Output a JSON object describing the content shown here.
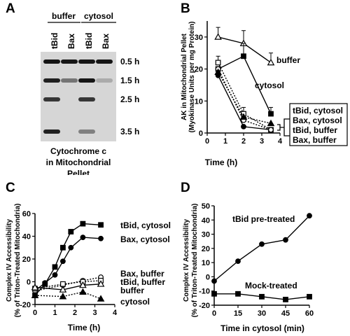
{
  "panels": {
    "a": {
      "letter": "A",
      "group_labels": [
        "buffer",
        "cytosol"
      ],
      "lane_labels": [
        "tBid",
        "Bax",
        "tBid",
        "Bax"
      ],
      "row_labels": [
        "0.5 h",
        "1.5 h",
        "2.5 h",
        "3.5 h"
      ],
      "caption": [
        "Cytochrome c",
        "in Mitochondrial",
        "Pellet"
      ],
      "band_intensity": [
        [
          0.9,
          0.9,
          0.9,
          0.9
        ],
        [
          0.85,
          0.45,
          0.9,
          0.2
        ],
        [
          0.75,
          0.0,
          0.75,
          0.0
        ],
        [
          0.85,
          0.0,
          0.4,
          0.0
        ]
      ]
    },
    "b": {
      "letter": "B"
    },
    "c": {
      "letter": "C"
    },
    "d": {
      "letter": "D"
    }
  },
  "chart_data": [
    {
      "id": "B",
      "type": "line",
      "xlabel": "Time (h)",
      "ylabel": "AK in Mitochondrial Pellet",
      "ylabel2": "(Myokinase Units per mg Protein)",
      "xlim": [
        0,
        4
      ],
      "ylim": [
        0,
        35
      ],
      "xticks": [
        0,
        1,
        2,
        3,
        4
      ],
      "yticks": [
        0,
        10,
        20,
        30
      ],
      "series": [
        {
          "name": "buffer",
          "marker": "open-triangle",
          "dash": false,
          "x": [
            0.6,
            2.0,
            3.5
          ],
          "y": [
            30,
            28,
            22
          ],
          "err": [
            3,
            4,
            3
          ]
        },
        {
          "name": "cytosol",
          "marker": "filled-square",
          "dash": false,
          "x": [
            0.6,
            2.0,
            3.5
          ],
          "y": [
            20,
            24,
            6
          ],
          "err": [
            0,
            4,
            2
          ]
        },
        {
          "name": "tBid, cytosol",
          "marker": "filled-circle",
          "dash": false,
          "x": [
            0.6,
            2.0,
            3.5
          ],
          "y": [
            18,
            2,
            1
          ],
          "err": [
            0,
            0,
            0
          ]
        },
        {
          "name": "Bax, cytosol",
          "marker": "open-square",
          "dash": true,
          "x": [
            0.6,
            2.0,
            3.5
          ],
          "y": [
            22,
            6,
            1
          ],
          "err": [
            2,
            2,
            0
          ]
        },
        {
          "name": "tBid, buffer",
          "marker": "open-circle",
          "dash": true,
          "x": [
            0.6,
            2.0,
            3.5
          ],
          "y": [
            20,
            4,
            1
          ],
          "err": [
            0,
            0,
            0
          ]
        },
        {
          "name": "Bax, buffer",
          "marker": "filled-triangle",
          "dash": true,
          "x": [
            0.6,
            2.0,
            3.5
          ],
          "y": [
            19,
            5,
            3
          ],
          "err": [
            0,
            0,
            0
          ]
        }
      ],
      "annotations": [
        "buffer",
        "cytosol"
      ],
      "bracket_labels": [
        "tBid, cytosol",
        "Bax, cytosol",
        "tBid, buffer",
        "Bax, buffer"
      ]
    },
    {
      "id": "C",
      "type": "line",
      "xlabel": "Time (h)",
      "ylabel": "Complex IV Accessibility",
      "ylabel2": "(% of Triton-Treated Mitochondria)",
      "xlim": [
        0,
        4
      ],
      "ylim": [
        -20,
        60
      ],
      "xticks": [
        0,
        1,
        2,
        3,
        4
      ],
      "yticks": [
        -20,
        0,
        20,
        40,
        60
      ],
      "series": [
        {
          "name": "tBid, cytosol",
          "marker": "filled-square",
          "dash": false,
          "x": [
            0,
            0.5,
            1.0,
            1.4,
            1.8,
            2.4,
            3.3
          ],
          "y": [
            -12,
            -2,
            13,
            30,
            44,
            51,
            50
          ]
        },
        {
          "name": "Bax, cytosol",
          "marker": "filled-circle",
          "dash": false,
          "x": [
            0,
            0.5,
            1.0,
            1.4,
            1.8,
            2.4,
            3.3
          ],
          "y": [
            -8,
            -1,
            6,
            18,
            30,
            39,
            38
          ]
        },
        {
          "name": "Bax, buffer",
          "marker": "open-circle",
          "dash": true,
          "x": [
            0,
            1.4,
            2.4,
            3.3
          ],
          "y": [
            -8,
            -3,
            1,
            4
          ]
        },
        {
          "name": "tBid, buffer",
          "marker": "open-square",
          "dash": true,
          "x": [
            0,
            1.4,
            2.4,
            3.3
          ],
          "y": [
            -6,
            -2,
            0,
            1
          ]
        },
        {
          "name": "buffer",
          "marker": "open-triangle",
          "dash": false,
          "x": [
            0,
            1.4,
            2.4,
            3.3
          ],
          "y": [
            -5,
            -7,
            -3,
            -2
          ]
        },
        {
          "name": "cytosol",
          "marker": "filled-triangle",
          "dash": true,
          "x": [
            0,
            1.4,
            2.4,
            3.3
          ],
          "y": [
            -12,
            -13,
            -9,
            -15
          ]
        }
      ],
      "labels": [
        "tBid, cytosol",
        "Bax, cytosol",
        "Bax, buffer",
        "tBid, buffer",
        "buffer",
        "cytosol"
      ]
    },
    {
      "id": "D",
      "type": "line",
      "xlabel": "Time in cytosol (min)",
      "ylabel": "Complex IV Accessibility",
      "ylabel2": "(% of Triton-Treated Mitochondria)",
      "xlim": [
        0,
        60
      ],
      "ylim": [
        -20,
        50
      ],
      "xticks": [
        0,
        15,
        30,
        45,
        60
      ],
      "yticks": [
        -20,
        -10,
        0,
        10,
        20,
        30,
        40,
        50
      ],
      "series": [
        {
          "name": "tBid pre-treated",
          "marker": "filled-circle",
          "dash": false,
          "x": [
            0,
            15,
            30,
            45,
            60
          ],
          "y": [
            -3,
            11,
            23,
            26,
            43
          ]
        },
        {
          "name": "Mock-treated",
          "marker": "filled-square",
          "dash": false,
          "x": [
            0,
            15,
            30,
            45,
            60
          ],
          "y": [
            -12,
            -12,
            -14,
            -16,
            -14
          ]
        }
      ]
    }
  ]
}
